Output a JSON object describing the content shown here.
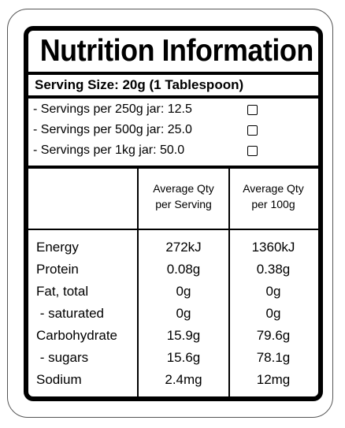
{
  "title": "Nutrition Information",
  "serving_size": "Serving Size: 20g (1 Tablespoon)",
  "jar_options": [
    {
      "label": "- Servings per 250g jar: 12.5",
      "checked": false
    },
    {
      "label": "- Servings per 500g jar: 25.0",
      "checked": false
    },
    {
      "label": "- Servings per 1kg jar: 50.0",
      "checked": false
    }
  ],
  "table": {
    "headers": [
      "",
      "Average Qty\nper Serving",
      "Average Qty\nper 100g"
    ],
    "rows": [
      {
        "name": "Energy",
        "per_serving": "272kJ",
        "per_100g": "1360kJ"
      },
      {
        "name": "Protein",
        "per_serving": "0.08g",
        "per_100g": "0.38g"
      },
      {
        "name": "Fat, total",
        "per_serving": "0g",
        "per_100g": "0g"
      },
      {
        "name": " - saturated",
        "per_serving": "0g",
        "per_100g": "0g"
      },
      {
        "name": "Carbohydrate",
        "per_serving": "15.9g",
        "per_100g": "79.6g"
      },
      {
        "name": " - sugars",
        "per_serving": "15.6g",
        "per_100g": "78.1g"
      },
      {
        "name": "Sodium",
        "per_serving": "2.4mg",
        "per_100g": "12mg"
      }
    ]
  },
  "colors": {
    "ink": "#000000",
    "background": "#ffffff",
    "outline": "#555555"
  }
}
